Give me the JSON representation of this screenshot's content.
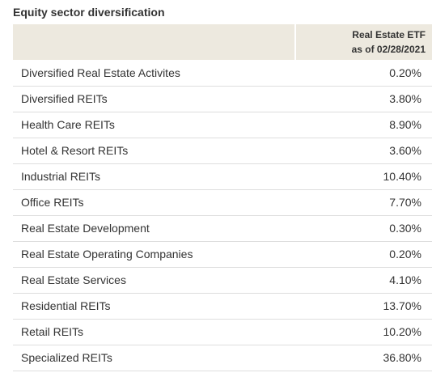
{
  "title": "Equity sector diversification",
  "table": {
    "header_line1": "Real Estate ETF",
    "header_line2": "as of 02/28/2021",
    "rows": [
      {
        "name": "Diversified Real Estate Activites",
        "value": "0.20%"
      },
      {
        "name": "Diversified REITs",
        "value": "3.80%"
      },
      {
        "name": "Health Care REITs",
        "value": "8.90%"
      },
      {
        "name": "Hotel & Resort REITs",
        "value": "3.60%"
      },
      {
        "name": "Industrial REITs",
        "value": "10.40%"
      },
      {
        "name": "Office REITs",
        "value": "7.70%"
      },
      {
        "name": "Real Estate Development",
        "value": "0.30%"
      },
      {
        "name": "Real Estate Operating Companies",
        "value": "0.20%"
      },
      {
        "name": "Real Estate Services",
        "value": "4.10%"
      },
      {
        "name": "Residential REITs",
        "value": "13.70%"
      },
      {
        "name": "Retail REITs",
        "value": "10.20%"
      },
      {
        "name": "Specialized REITs",
        "value": "36.80%"
      }
    ]
  },
  "colors": {
    "header_bg": "#ede9df",
    "row_divider": "#dedede",
    "text": "#333333"
  }
}
